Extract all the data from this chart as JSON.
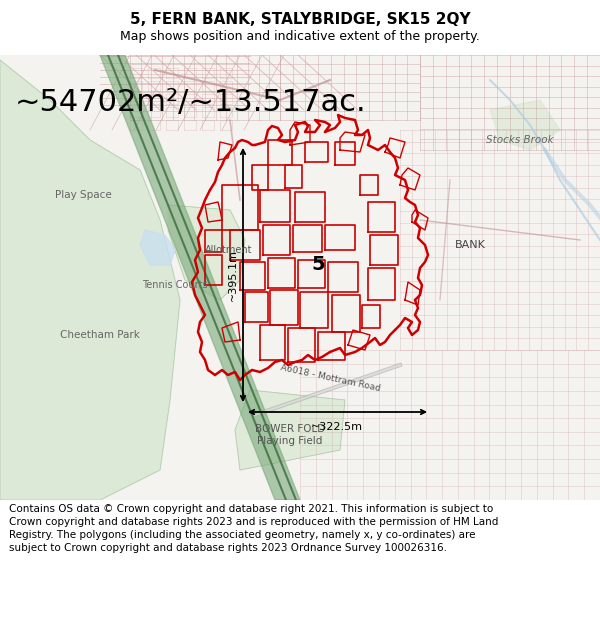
{
  "title_line1": "5, FERN BANK, STALYBRIDGE, SK15 2QY",
  "title_line2": "Map shows position and indicative extent of the property.",
  "area_text": "~54702m²/~13.517ac.",
  "dim_vertical": "~395.1m",
  "dim_horizontal": "~322.5m",
  "label_center": "5",
  "label_bank": "BANK",
  "label_stocks": "Stocks Brook",
  "label_allotment": "Allotment",
  "label_play": "Play Space",
  "label_tennis": "Tennis Courts",
  "label_cheetham": "Cheetham Park",
  "label_bower": "BOWER FOLD\nPlaying Field",
  "label_road": "A6018 - Mottram Road",
  "copyright_text": "Contains OS data © Crown copyright and database right 2021. This information is subject to Crown copyright and database rights 2023 and is reproduced with the permission of HM Land Registry. The polygons (including the associated geometry, namely x, y co-ordinates) are subject to Crown copyright and database rights 2023 Ordnance Survey 100026316.",
  "map_bg": "#f5f3f0",
  "highlight_color": "#cc0000",
  "green_light": "#dae8d4",
  "green_strip": "#5a8a5a",
  "green_strip_light": "#8ab88a",
  "title_fontsize": 11,
  "subtitle_fontsize": 9,
  "area_fontsize": 22,
  "copyright_fontsize": 7.5,
  "fig_width": 6.0,
  "fig_height": 6.25,
  "dpi": 100
}
